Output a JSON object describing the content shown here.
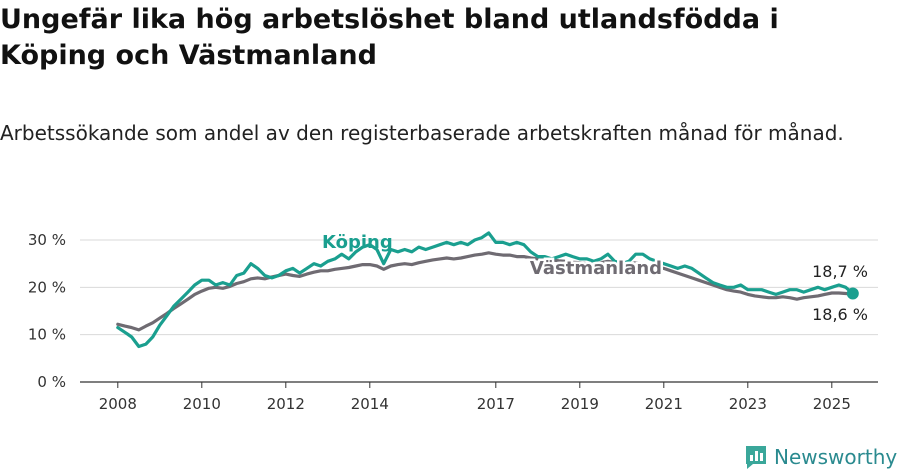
{
  "title": "Ungefär lika hög arbetslöshet bland utlandsfödda i Köping och Västmanland",
  "subtitle": "Arbetssökande som andel av den registerbaserade arbetskraften månad för månad.",
  "brand": {
    "name": "Newsworthy",
    "icon": "newsworthy-logo-icon"
  },
  "chart_data": {
    "type": "line",
    "title": "Ungefär lika hög arbetslöshet bland utlandsfödda i Köping och Västmanland",
    "subtitle": "Arbetssökande som andel av den registerbaserade arbetskraften månad för månad.",
    "x_range": [
      2007.1,
      2026.1
    ],
    "ylim": [
      0,
      30
    ],
    "y_ticks": [
      0,
      10,
      20,
      30
    ],
    "y_tick_labels": [
      "0 %",
      "10 %",
      "20 %",
      "30 %"
    ],
    "x_ticks": [
      2008,
      2010,
      2012,
      2014,
      2017,
      2019,
      2021,
      2023,
      2025
    ],
    "x_tick_labels": [
      "2008",
      "2010",
      "2012",
      "2014",
      "2017",
      "2019",
      "2021",
      "2023",
      "2025"
    ],
    "grid": true,
    "series": [
      {
        "name": "Köping",
        "color": "#1a9f8f",
        "end_label": "18,7 %",
        "x": [
          2008.0,
          2008.17,
          2008.33,
          2008.5,
          2008.67,
          2008.83,
          2009.0,
          2009.17,
          2009.33,
          2009.5,
          2009.67,
          2009.83,
          2010.0,
          2010.17,
          2010.33,
          2010.5,
          2010.67,
          2010.83,
          2011.0,
          2011.17,
          2011.33,
          2011.5,
          2011.67,
          2011.83,
          2012.0,
          2012.17,
          2012.33,
          2012.5,
          2012.67,
          2012.83,
          2013.0,
          2013.17,
          2013.33,
          2013.5,
          2013.67,
          2013.83,
          2014.0,
          2014.17,
          2014.33,
          2014.5,
          2014.67,
          2014.83,
          2015.0,
          2015.17,
          2015.33,
          2015.5,
          2015.67,
          2015.83,
          2016.0,
          2016.17,
          2016.33,
          2016.5,
          2016.67,
          2016.83,
          2017.0,
          2017.17,
          2017.33,
          2017.5,
          2017.67,
          2017.83,
          2018.0,
          2018.17,
          2018.33,
          2018.5,
          2018.67,
          2018.83,
          2019.0,
          2019.17,
          2019.33,
          2019.5,
          2019.67,
          2019.83,
          2020.0,
          2020.17,
          2020.33,
          2020.5,
          2020.67,
          2020.83,
          2021.0,
          2021.17,
          2021.33,
          2021.5,
          2021.67,
          2021.83,
          2022.0,
          2022.17,
          2022.33,
          2022.5,
          2022.67,
          2022.83,
          2023.0,
          2023.17,
          2023.33,
          2023.5,
          2023.67,
          2023.83,
          2024.0,
          2024.17,
          2024.33,
          2024.5,
          2024.67,
          2024.83,
          2025.0,
          2025.17,
          2025.33,
          2025.5
        ],
        "y": [
          11.5,
          10.5,
          9.5,
          7.5,
          8.0,
          9.5,
          12.0,
          14.0,
          16.0,
          17.5,
          19.0,
          20.5,
          21.5,
          21.5,
          20.5,
          21.0,
          20.5,
          22.5,
          23.0,
          25.0,
          24.0,
          22.5,
          22.0,
          22.5,
          23.5,
          24.0,
          23.0,
          24.0,
          25.0,
          24.5,
          25.5,
          26.0,
          27.0,
          26.0,
          27.5,
          28.5,
          29.0,
          28.0,
          25.0,
          28.0,
          27.5,
          28.0,
          27.5,
          28.5,
          28.0,
          28.5,
          29.0,
          29.5,
          29.0,
          29.5,
          29.0,
          30.0,
          30.5,
          31.5,
          29.5,
          29.5,
          29.0,
          29.5,
          29.0,
          27.5,
          26.5,
          26.5,
          26.0,
          26.5,
          27.0,
          26.5,
          26.0,
          26.0,
          25.5,
          26.0,
          27.0,
          25.5,
          25.0,
          25.5,
          27.0,
          27.0,
          26.0,
          25.5,
          25.0,
          24.5,
          24.0,
          24.5,
          24.0,
          23.0,
          22.0,
          21.0,
          20.5,
          20.0,
          20.0,
          20.5,
          19.5,
          19.5,
          19.5,
          19.0,
          18.5,
          19.0,
          19.5,
          19.5,
          19.0,
          19.5,
          20.0,
          19.5,
          20.0,
          20.5,
          20.0,
          18.7
        ]
      },
      {
        "name": "Västmanland",
        "color": "#6f6b72",
        "end_label": "18,6 %",
        "x": [
          2008.0,
          2008.17,
          2008.33,
          2008.5,
          2008.67,
          2008.83,
          2009.0,
          2009.17,
          2009.33,
          2009.5,
          2009.67,
          2009.83,
          2010.0,
          2010.17,
          2010.33,
          2010.5,
          2010.67,
          2010.83,
          2011.0,
          2011.17,
          2011.33,
          2011.5,
          2011.67,
          2011.83,
          2012.0,
          2012.17,
          2012.33,
          2012.5,
          2012.67,
          2012.83,
          2013.0,
          2013.17,
          2013.33,
          2013.5,
          2013.67,
          2013.83,
          2014.0,
          2014.17,
          2014.33,
          2014.5,
          2014.67,
          2014.83,
          2015.0,
          2015.17,
          2015.33,
          2015.5,
          2015.67,
          2015.83,
          2016.0,
          2016.17,
          2016.33,
          2016.5,
          2016.67,
          2016.83,
          2017.0,
          2017.17,
          2017.33,
          2017.5,
          2017.67,
          2017.83,
          2018.0,
          2018.17,
          2018.33,
          2018.5,
          2018.67,
          2018.83,
          2019.0,
          2019.17,
          2019.33,
          2019.5,
          2019.67,
          2019.83,
          2020.0,
          2020.17,
          2020.33,
          2020.5,
          2020.67,
          2020.83,
          2021.0,
          2021.17,
          2021.33,
          2021.5,
          2021.67,
          2021.83,
          2022.0,
          2022.17,
          2022.33,
          2022.5,
          2022.67,
          2022.83,
          2023.0,
          2023.17,
          2023.33,
          2023.5,
          2023.67,
          2023.83,
          2024.0,
          2024.17,
          2024.33,
          2024.5,
          2024.67,
          2024.83,
          2025.0,
          2025.17,
          2025.33,
          2025.5
        ],
        "y": [
          12.2,
          11.8,
          11.5,
          11.0,
          11.8,
          12.5,
          13.5,
          14.5,
          15.5,
          16.5,
          17.5,
          18.5,
          19.2,
          19.8,
          20.0,
          19.8,
          20.2,
          20.8,
          21.2,
          21.8,
          22.0,
          21.8,
          22.2,
          22.5,
          22.8,
          22.5,
          22.3,
          22.8,
          23.2,
          23.5,
          23.5,
          23.8,
          24.0,
          24.2,
          24.5,
          24.8,
          24.8,
          24.5,
          23.8,
          24.5,
          24.8,
          25.0,
          24.8,
          25.2,
          25.5,
          25.8,
          26.0,
          26.2,
          26.0,
          26.2,
          26.5,
          26.8,
          27.0,
          27.3,
          27.0,
          26.8,
          26.8,
          26.5,
          26.5,
          26.2,
          26.0,
          25.8,
          25.8,
          25.6,
          25.5,
          25.3,
          25.2,
          25.0,
          25.0,
          25.2,
          25.5,
          25.2,
          25.0,
          24.8,
          25.2,
          25.0,
          24.5,
          24.3,
          24.0,
          23.5,
          23.0,
          22.5,
          22.0,
          21.5,
          21.0,
          20.5,
          20.0,
          19.5,
          19.2,
          19.0,
          18.5,
          18.2,
          18.0,
          17.8,
          17.8,
          18.0,
          17.8,
          17.5,
          17.8,
          18.0,
          18.2,
          18.5,
          18.8,
          18.8,
          18.7,
          18.6
        ]
      }
    ]
  }
}
